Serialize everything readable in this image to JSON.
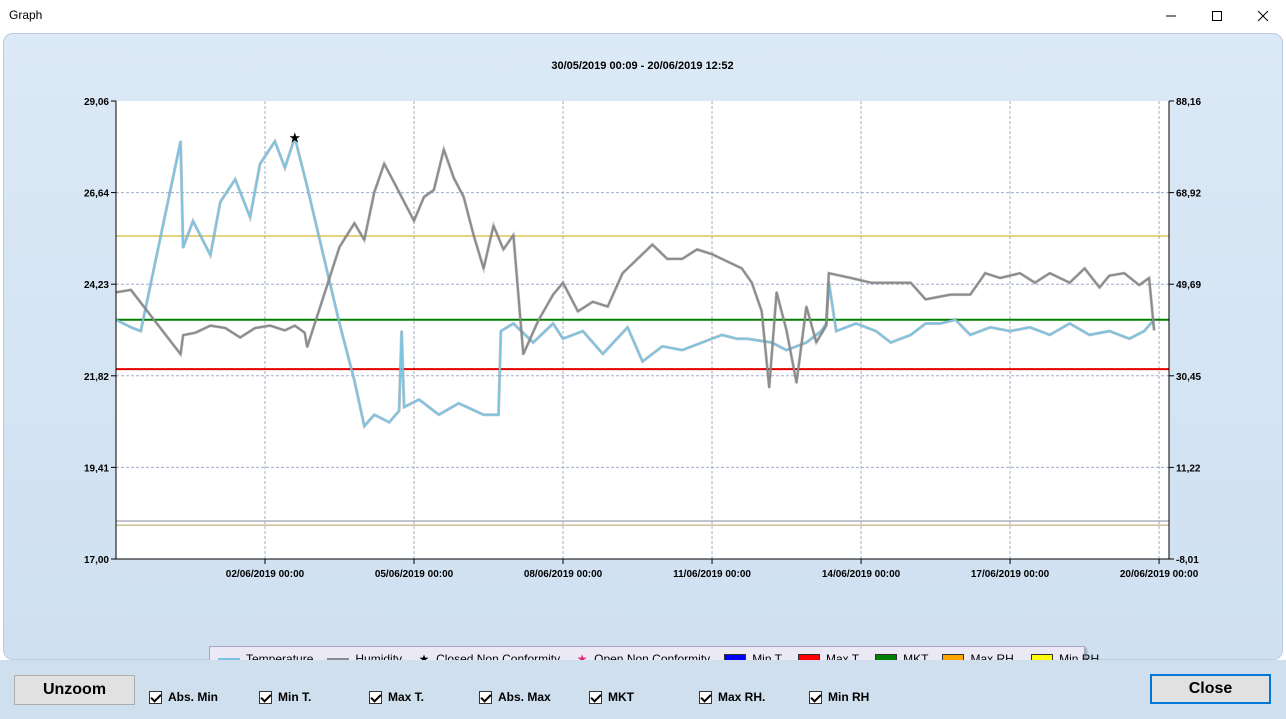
{
  "window": {
    "title": "Graph"
  },
  "chart_data": {
    "type": "line",
    "title": "30/05/2019 00:09 - 20/06/2019 12:52",
    "y_left": {
      "ticks": [
        "29,06",
        "26,64",
        "24,23",
        "21,82",
        "19,41",
        "17,00"
      ],
      "ylim": [
        17.0,
        29.06
      ]
    },
    "y_right": {
      "ticks": [
        "88,16",
        "68,92",
        "49,69",
        "30,45",
        "11,22",
        "-8,01"
      ],
      "ylim": [
        -8.01,
        88.16
      ]
    },
    "x_ticks": [
      "02/06/2019 00:00",
      "05/06/2019 00:00",
      "08/06/2019 00:00",
      "11/06/2019 00:00",
      "14/06/2019 00:00",
      "17/06/2019 00:00",
      "20/06/2019 00:00"
    ],
    "grid": true,
    "limit_lines": [
      {
        "name": "Max RH.",
        "axis": "right",
        "value": 59.8,
        "color": "#c8a800"
      },
      {
        "name": "MKT",
        "axis": "left",
        "value": 23.3,
        "color": "#008000"
      },
      {
        "name": "Max T.",
        "axis": "left",
        "value": 22.0,
        "color": "#e00000"
      },
      {
        "name": "Min RH",
        "axis": "right",
        "value": -0.9,
        "color": "#b0a060"
      },
      {
        "name": "Min T.",
        "axis": "left",
        "value": 18.0,
        "color": "#8a8aa0"
      }
    ],
    "series": [
      {
        "name": "Temperature",
        "axis": "left",
        "color": "#7ec4e2",
        "points": [
          [
            0.0,
            23.3
          ],
          [
            0.3,
            23.1
          ],
          [
            0.5,
            23.0
          ],
          [
            1.3,
            28.0
          ],
          [
            1.35,
            25.2
          ],
          [
            1.55,
            25.9
          ],
          [
            1.9,
            25.0
          ],
          [
            2.1,
            26.4
          ],
          [
            2.4,
            27.0
          ],
          [
            2.7,
            26.0
          ],
          [
            2.9,
            27.4
          ],
          [
            3.2,
            28.0
          ],
          [
            3.4,
            27.3
          ],
          [
            3.6,
            28.1
          ],
          [
            3.85,
            26.8
          ],
          [
            4.5,
            23.2
          ],
          [
            4.8,
            21.7
          ],
          [
            5.0,
            20.5
          ],
          [
            5.2,
            20.8
          ],
          [
            5.5,
            20.6
          ],
          [
            5.7,
            20.9
          ],
          [
            5.75,
            23.0
          ],
          [
            5.8,
            21.0
          ],
          [
            6.1,
            21.2
          ],
          [
            6.5,
            20.8
          ],
          [
            6.9,
            21.1
          ],
          [
            7.4,
            20.8
          ],
          [
            7.7,
            20.8
          ],
          [
            7.75,
            23.0
          ],
          [
            8.0,
            23.2
          ],
          [
            8.4,
            22.7
          ],
          [
            8.8,
            23.2
          ],
          [
            9.0,
            22.8
          ],
          [
            9.4,
            23.0
          ],
          [
            9.8,
            22.4
          ],
          [
            10.3,
            23.1
          ],
          [
            10.6,
            22.2
          ],
          [
            11.0,
            22.6
          ],
          [
            11.4,
            22.5
          ],
          [
            11.8,
            22.7
          ],
          [
            12.2,
            22.9
          ],
          [
            12.5,
            22.8
          ],
          [
            12.7,
            22.8
          ],
          [
            13.2,
            22.7
          ],
          [
            13.5,
            22.5
          ],
          [
            13.9,
            22.7
          ],
          [
            14.2,
            23.0
          ],
          [
            14.3,
            23.2
          ],
          [
            14.35,
            24.3
          ],
          [
            14.5,
            23.0
          ],
          [
            14.9,
            23.2
          ],
          [
            15.3,
            23.0
          ],
          [
            15.6,
            22.7
          ],
          [
            16.0,
            22.9
          ],
          [
            16.3,
            23.2
          ],
          [
            16.6,
            23.2
          ],
          [
            16.9,
            23.3
          ],
          [
            17.2,
            22.9
          ],
          [
            17.6,
            23.1
          ],
          [
            18.0,
            23.0
          ],
          [
            18.4,
            23.1
          ],
          [
            18.8,
            22.9
          ],
          [
            19.2,
            23.2
          ],
          [
            19.6,
            22.9
          ],
          [
            20.0,
            23.0
          ],
          [
            20.4,
            22.8
          ],
          [
            20.7,
            23.0
          ],
          [
            20.9,
            23.3
          ]
        ]
      },
      {
        "name": "Humidity",
        "axis": "right",
        "color": "#8c8c8c",
        "points": [
          [
            0.0,
            48.0
          ],
          [
            0.3,
            48.5
          ],
          [
            1.3,
            35.0
          ],
          [
            1.35,
            39.0
          ],
          [
            1.6,
            39.5
          ],
          [
            1.9,
            41.0
          ],
          [
            2.2,
            40.5
          ],
          [
            2.5,
            38.5
          ],
          [
            2.8,
            40.5
          ],
          [
            3.1,
            41.0
          ],
          [
            3.4,
            40.0
          ],
          [
            3.6,
            41.0
          ],
          [
            3.8,
            39.5
          ],
          [
            3.85,
            36.5
          ],
          [
            4.5,
            57.5
          ],
          [
            4.8,
            62.5
          ],
          [
            5.0,
            59.0
          ],
          [
            5.2,
            69.0
          ],
          [
            5.4,
            75.0
          ],
          [
            5.6,
            71.0
          ],
          [
            5.8,
            67.0
          ],
          [
            6.0,
            63.0
          ],
          [
            6.2,
            68.0
          ],
          [
            6.4,
            69.5
          ],
          [
            6.6,
            78.0
          ],
          [
            6.8,
            72.0
          ],
          [
            7.0,
            68.0
          ],
          [
            7.2,
            60.0
          ],
          [
            7.4,
            53.0
          ],
          [
            7.6,
            62.0
          ],
          [
            7.8,
            57.0
          ],
          [
            8.0,
            60.0
          ],
          [
            8.2,
            35.0
          ],
          [
            8.5,
            42.0
          ],
          [
            8.8,
            47.5
          ],
          [
            9.0,
            50.0
          ],
          [
            9.3,
            44.0
          ],
          [
            9.6,
            46.0
          ],
          [
            9.9,
            45.0
          ],
          [
            10.2,
            52.0
          ],
          [
            10.5,
            55.0
          ],
          [
            10.8,
            58.0
          ],
          [
            11.1,
            55.0
          ],
          [
            11.4,
            55.0
          ],
          [
            11.7,
            57.0
          ],
          [
            12.0,
            56.0
          ],
          [
            12.3,
            54.5
          ],
          [
            12.6,
            53.0
          ],
          [
            12.8,
            50.0
          ],
          [
            13.0,
            44.0
          ],
          [
            13.15,
            28.0
          ],
          [
            13.3,
            48.0
          ],
          [
            13.5,
            40.0
          ],
          [
            13.7,
            29.0
          ],
          [
            13.9,
            45.0
          ],
          [
            14.1,
            37.5
          ],
          [
            14.3,
            41.0
          ],
          [
            14.35,
            52.0
          ],
          [
            14.8,
            51.0
          ],
          [
            15.2,
            50.0
          ],
          [
            15.6,
            50.0
          ],
          [
            16.0,
            50.0
          ],
          [
            16.3,
            46.5
          ],
          [
            16.8,
            47.5
          ],
          [
            17.2,
            47.5
          ],
          [
            17.5,
            52.0
          ],
          [
            17.8,
            51.0
          ],
          [
            18.2,
            52.0
          ],
          [
            18.5,
            50.0
          ],
          [
            18.8,
            52.0
          ],
          [
            19.2,
            50.0
          ],
          [
            19.5,
            53.0
          ],
          [
            19.8,
            49.0
          ],
          [
            20.0,
            51.5
          ],
          [
            20.3,
            52.0
          ],
          [
            20.6,
            49.5
          ],
          [
            20.8,
            51.0
          ],
          [
            20.9,
            40.0
          ]
        ]
      }
    ],
    "star_marker": {
      "name": "Closed Non Conformity",
      "x": 3.6,
      "y": 28.1
    }
  },
  "legend": {
    "items": [
      {
        "kind": "line",
        "label": "Temperature",
        "color": "#7ec4e2"
      },
      {
        "kind": "line",
        "label": "Humidity",
        "color": "#8c8c8c"
      },
      {
        "kind": "star",
        "label": "Closed Non Conformity",
        "color": "#000000"
      },
      {
        "kind": "star",
        "label": "Open Non Conformity",
        "color": "#e0207a"
      },
      {
        "kind": "swatch",
        "label": "Min T.",
        "color": "#0000ff"
      },
      {
        "kind": "swatch",
        "label": "Max T.",
        "color": "#ff0000"
      },
      {
        "kind": "swatch",
        "label": "MKT",
        "color": "#008000"
      },
      {
        "kind": "swatch",
        "label": "Max RH.",
        "color": "#ffa500"
      },
      {
        "kind": "swatch",
        "label": "Min RH",
        "color": "#ffff00"
      }
    ]
  },
  "controls": {
    "unzoom_label": "Unzoom",
    "close_label": "Close",
    "checkboxes": [
      {
        "label": "Abs. Min",
        "checked": true
      },
      {
        "label": "Min T.",
        "checked": true
      },
      {
        "label": "Max T.",
        "checked": true
      },
      {
        "label": "Abs. Max",
        "checked": true
      },
      {
        "label": "MKT",
        "checked": true
      },
      {
        "label": "Max RH.",
        "checked": true
      },
      {
        "label": "Min RH",
        "checked": true
      }
    ]
  }
}
